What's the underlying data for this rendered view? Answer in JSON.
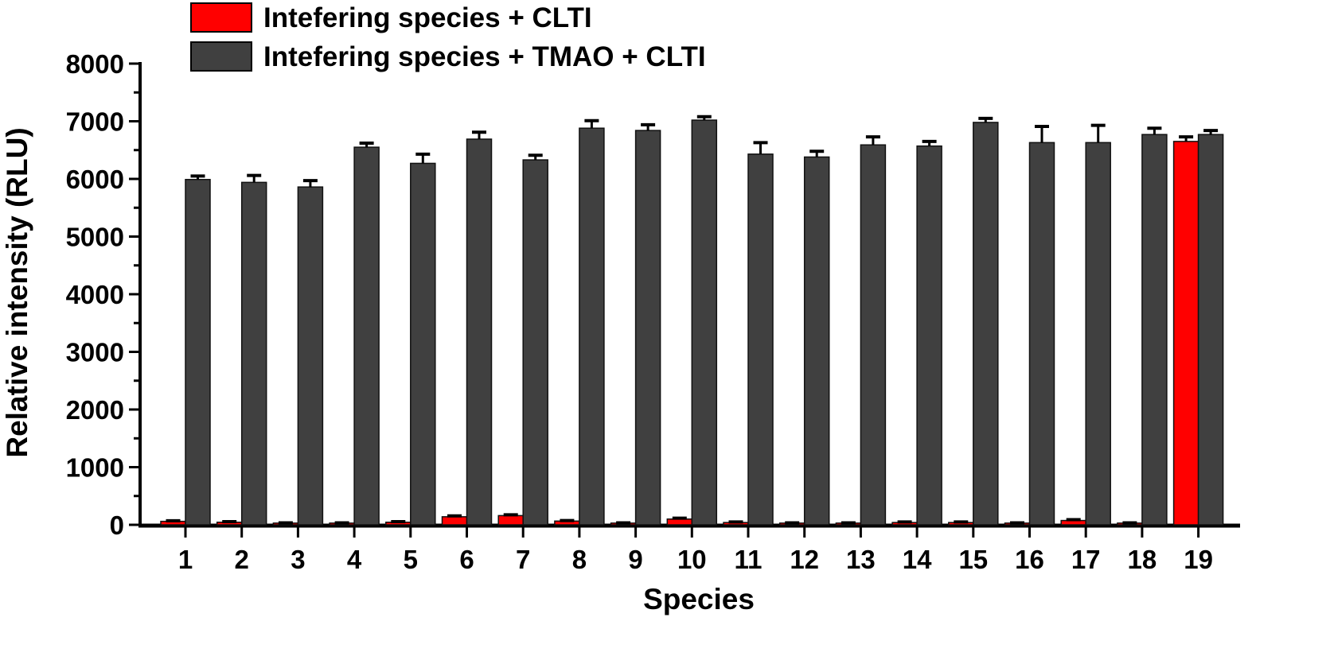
{
  "chart_data": {
    "type": "bar",
    "title": "",
    "xlabel": "Species",
    "ylabel": "Relative intensity (RLU)",
    "ylim": [
      0,
      8000
    ],
    "yticks": [
      0,
      1000,
      2000,
      3000,
      4000,
      5000,
      6000,
      7000,
      8000
    ],
    "y_minor_step": 500,
    "grid": false,
    "legend_position": "top-left (above plot)",
    "categories": [
      "1",
      "2",
      "3",
      "4",
      "5",
      "6",
      "7",
      "8",
      "9",
      "10",
      "11",
      "12",
      "13",
      "14",
      "15",
      "16",
      "17",
      "18",
      "19"
    ],
    "series": [
      {
        "name": "Intefering species + CLTI",
        "color": "#ff0000",
        "values": [
          60,
          45,
          30,
          30,
          45,
          140,
          160,
          65,
          30,
          100,
          40,
          30,
          30,
          40,
          40,
          30,
          75,
          30,
          6650
        ],
        "errors": [
          10,
          10,
          5,
          5,
          10,
          15,
          15,
          10,
          5,
          15,
          10,
          5,
          5,
          10,
          10,
          5,
          15,
          5,
          80
        ]
      },
      {
        "name": "Intefering species + TMAO + CLTI",
        "color": "#404040",
        "values": [
          5990,
          5940,
          5860,
          6550,
          6270,
          6690,
          6330,
          6880,
          6840,
          7020,
          6430,
          6380,
          6590,
          6570,
          6980,
          6630,
          6630,
          6770,
          6770
        ],
        "errors": [
          60,
          120,
          110,
          70,
          160,
          120,
          80,
          130,
          100,
          60,
          200,
          100,
          140,
          80,
          70,
          280,
          300,
          110,
          70
        ]
      }
    ]
  }
}
